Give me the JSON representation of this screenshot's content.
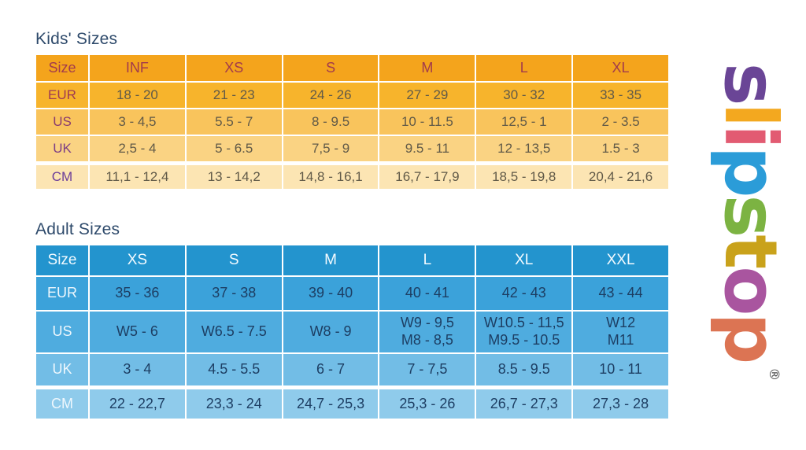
{
  "kids_table": {
    "title": "Kids' Sizes",
    "headers": [
      "Size",
      "INF",
      "XS",
      "S",
      "M",
      "L",
      "XL"
    ],
    "rows": [
      {
        "label": "EUR",
        "values": [
          "18 - 20",
          "21 - 23",
          "24 - 26",
          "27 - 29",
          "30 - 32",
          "33 - 35"
        ]
      },
      {
        "label": "US",
        "values": [
          "3 - 4,5",
          "5.5 - 7",
          "8 - 9.5",
          "10 - 11.5",
          "12,5 - 1",
          "2 - 3.5"
        ]
      },
      {
        "label": "UK",
        "values": [
          "2,5 - 4",
          "5 - 6.5",
          "7,5 - 9",
          "9.5 - 11",
          "12 - 13,5",
          "1.5 - 3"
        ]
      },
      {
        "label": "CM",
        "values": [
          "11,1 - 12,4",
          "13 - 14,2",
          "14,8 - 16,1",
          "16,7 - 17,9",
          "18,5 - 19,8",
          "20,4 - 21,6"
        ]
      }
    ]
  },
  "adult_table": {
    "title": "Adult Sizes",
    "headers": [
      "Size",
      "XS",
      "S",
      "M",
      "L",
      "XL",
      "XXL"
    ],
    "rows": [
      {
        "label": "EUR",
        "values": [
          "35 - 36",
          "37 - 38",
          "39 - 40",
          "40 - 41",
          "42 - 43",
          "43 - 44"
        ]
      },
      {
        "label": "US",
        "values": [
          "W5 - 6",
          "W6.5 - 7.5",
          "W8 - 9",
          "W9 - 9,5\nM8 - 8,5",
          "W10.5 - 11,5\nM9.5 - 10.5",
          "W12\nM11"
        ]
      },
      {
        "label": "UK",
        "values": [
          "3 - 4",
          "4.5 - 5.5",
          "6 - 7",
          "7 - 7,5",
          "8.5 - 9.5",
          "10 - 11"
        ]
      },
      {
        "label": "CM",
        "values": [
          "22 - 22,7",
          "23,3 - 24",
          "24,7 - 25,3",
          "25,3 - 26",
          "26,7 - 27,3",
          "27,3 - 28"
        ]
      }
    ]
  },
  "logo": {
    "brand": "slipstop",
    "letters": [
      {
        "char": "s",
        "color": "#6a4596"
      },
      {
        "char": "l",
        "color": "#f3a81f"
      },
      {
        "char": "i",
        "color": "#e25b72"
      },
      {
        "char": "p",
        "color": "#2b9cd8"
      },
      {
        "char": "s",
        "color": "#7cb342"
      },
      {
        "char": "t",
        "color": "#c9a21b"
      },
      {
        "char": "o",
        "color": "#a9559f"
      },
      {
        "char": "p",
        "color": "#dc7453"
      }
    ],
    "registered_mark": "®"
  },
  "colors": {
    "page_bg": "#ffffff",
    "grid_line": "#ffffff",
    "title_text": "#2e4a6b",
    "kids_header_bg": "#f4a41c",
    "kids_eur_bg": "#f7b42c",
    "kids_us_bg": "#f9c45c",
    "kids_uk_bg": "#fad383",
    "kids_cm_bg": "#fce5b3",
    "kids_header_text": "#a23b4c",
    "kids_eur_label": "#9e3a53",
    "kids_us_label": "#8a3c6e",
    "kids_uk_label": "#7c3d85",
    "kids_cm_label": "#6c3e99",
    "kids_value_text": "#615a48",
    "adult_header_bg": "#2394ce",
    "adult_eur_bg": "#3ba2da",
    "adult_us_bg": "#4facdf",
    "adult_uk_bg": "#72bde6",
    "adult_cm_bg": "#8fcbeb",
    "adult_header_text": "#f2faff",
    "adult_label_text": "#eef7fd",
    "adult_value_text": "#1d3e63",
    "reg_mark": "#4a4a4a"
  }
}
